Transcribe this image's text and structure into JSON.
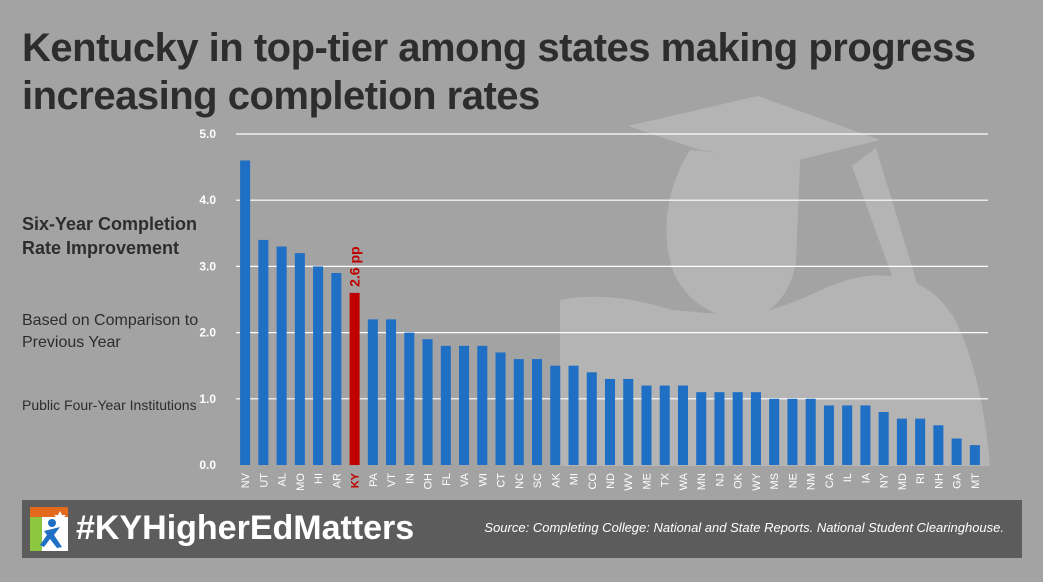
{
  "title": "Kentucky in top-tier among states making progress increasing completion rates",
  "side_panel": {
    "heading": "Six-Year Completion Rate Improvement",
    "basis": "Based on Comparison to Previous Year",
    "institutions": "Public Four-Year Institutions"
  },
  "footer": {
    "hashtag": "#KYHigherEdMatters",
    "source": "Source: Completing College: National and State Reports. National Student Clearinghouse."
  },
  "colors": {
    "background": "#a3a3a3",
    "bar": "#1f6fc4",
    "highlight": "#c00000",
    "grid": "#ffffff",
    "text": "#2d2d2d",
    "footer": "#5c5c5c"
  },
  "chart_data": {
    "type": "bar",
    "categories": [
      "NV",
      "UT",
      "AL",
      "MO",
      "HI",
      "AR",
      "KY",
      "PA",
      "VT",
      "IN",
      "OH",
      "FL",
      "VA",
      "WI",
      "CT",
      "NC",
      "SC",
      "AK",
      "MI",
      "CO",
      "ND",
      "WV",
      "ME",
      "TX",
      "WA",
      "MN",
      "NJ",
      "OK",
      "WY",
      "MS",
      "NE",
      "NM",
      "CA",
      "IL",
      "IA",
      "NY",
      "MD",
      "RI",
      "NH",
      "GA",
      "MT"
    ],
    "values": [
      4.6,
      3.4,
      3.3,
      3.2,
      3.0,
      2.9,
      2.6,
      2.2,
      2.2,
      2.0,
      1.9,
      1.8,
      1.8,
      1.8,
      1.7,
      1.6,
      1.6,
      1.5,
      1.5,
      1.4,
      1.3,
      1.3,
      1.2,
      1.2,
      1.2,
      1.1,
      1.1,
      1.1,
      1.1,
      1.0,
      1.0,
      1.0,
      0.9,
      0.9,
      0.9,
      0.8,
      0.7,
      0.7,
      0.6,
      0.4,
      0.3
    ],
    "highlight": {
      "category": "KY",
      "label": "2.6 pp"
    },
    "yticks": [
      "0.0",
      "1.0",
      "2.0",
      "3.0",
      "4.0",
      "5.0"
    ],
    "ylim": [
      0,
      5
    ],
    "grid": true,
    "title": "",
    "xlabel": "",
    "ylabel": ""
  }
}
